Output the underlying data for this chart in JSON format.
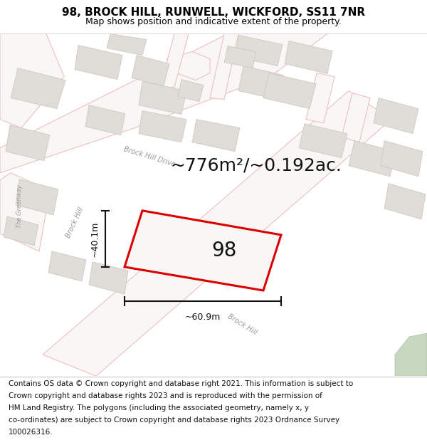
{
  "title": "98, BROCK HILL, RUNWELL, WICKFORD, SS11 7NR",
  "subtitle": "Map shows position and indicative extent of the property.",
  "footer_lines": [
    "Contains OS data © Crown copyright and database right 2021. This information is subject to",
    "Crown copyright and database rights 2023 and is reproduced with the permission of",
    "HM Land Registry. The polygons (including the associated geometry, namely x, y",
    "co-ordinates) are subject to Crown copyright and database rights 2023 Ordnance Survey",
    "100026316."
  ],
  "area_text": "~776m²/~0.192ac.",
  "label_number": "98",
  "dim_width": "~60.9m",
  "dim_height": "~40.1m",
  "road_label_bh_drive": "Brock Hill Drive",
  "road_label_bh": "Brock Hill",
  "road_label_greenway": "The Greenway",
  "map_bg": "#f8f7f5",
  "road_line_color": "#f0c0c0",
  "building_fill": "#e0ddd8",
  "building_edge": "#c8c4bc",
  "plot_outline_color": "#dd0000",
  "plot_fill": "#f8f7f5",
  "dim_line_color": "#111111",
  "green_fill": "#c8d8c0",
  "green_edge": "#a8c0a0",
  "title_fontsize": 11,
  "subtitle_fontsize": 9,
  "footer_fontsize": 7.5,
  "area_fontsize": 18,
  "label_fontsize": 20,
  "road_label_fontsize": 7,
  "dim_fontsize": 9
}
